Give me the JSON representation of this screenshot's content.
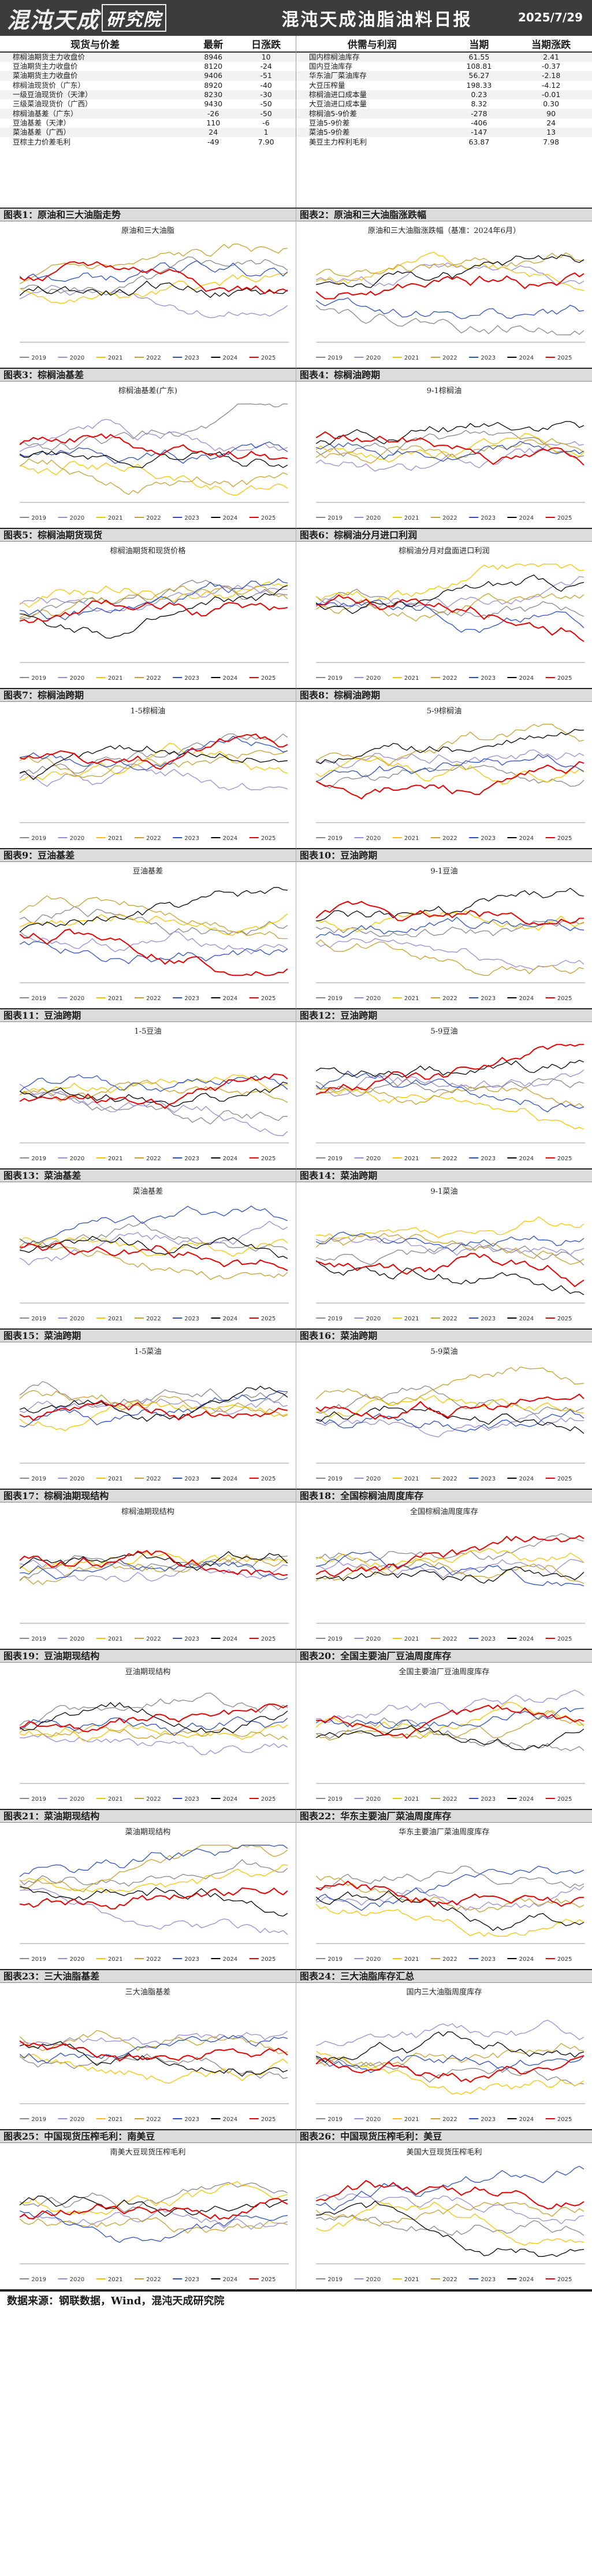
{
  "header": {
    "brand_a": "混沌天成",
    "brand_b": "研究院",
    "title": "混沌天成油脂油料日报",
    "date": "2025/7/29"
  },
  "spot_table": {
    "headers": [
      "现货与价差",
      "最新",
      "日涨跌"
    ],
    "rows": [
      [
        "棕榈油期货主力收盘价",
        "8946",
        "10"
      ],
      [
        "豆油期货主力收盘价",
        "8120",
        "-24"
      ],
      [
        "菜油期货主力收盘价",
        "9406",
        "-51"
      ],
      [
        "棕榈油现货价（广东）",
        "8920",
        "-40"
      ],
      [
        "一级豆油现货价（天津）",
        "8230",
        "-30"
      ],
      [
        "三级菜油现货价（广西）",
        "9430",
        "-50"
      ],
      [
        "棕榈油基差（广东）",
        "-26",
        "-50"
      ],
      [
        "豆油基差（天津）",
        "110",
        "-6"
      ],
      [
        "菜油基差（广西）",
        "24",
        "1"
      ],
      [
        "豆棕主力价差毛利",
        "-49",
        "7.90"
      ]
    ]
  },
  "supply_table": {
    "headers": [
      "供需与利润",
      "当期",
      "当期涨跌"
    ],
    "rows": [
      [
        "国内棕榈油库存",
        "61.55",
        "2.41"
      ],
      [
        "国内豆油库存",
        "108.81",
        "-0.37"
      ],
      [
        "华东油厂菜油库存",
        "56.27",
        "-2.18"
      ],
      [
        "大豆压榨量",
        "198.33",
        "-4.12"
      ],
      [
        "棕榈油进口成本量",
        "0.23",
        "-0.01"
      ],
      [
        "大豆油进口成本量",
        "8.32",
        "0.30"
      ],
      [
        "棕榈油5-9价差",
        "-278",
        "90"
      ],
      [
        "豆油5-9价差",
        "-406",
        "24"
      ],
      [
        "菜油5-9价差",
        "-147",
        "13"
      ],
      [
        "美豆主力榨利毛利",
        "63.87",
        "7.98"
      ]
    ]
  },
  "panels": [
    {
      "title": "图表1：原油和三大油脂走势",
      "chart_title": "原油和三大油脂"
    },
    {
      "title": "图表2：原油和三大油脂涨跌幅",
      "chart_title": "原油和三大油脂涨跌幅（基准：2024年6月）"
    },
    {
      "title": "图表3：棕榈油基差",
      "chart_title": "棕榈油基差(广东)"
    },
    {
      "title": "图表4：棕榈油跨期",
      "chart_title": "9-1棕榈油"
    },
    {
      "title": "图表5：棕榈油期货现货",
      "chart_title": "棕榈油期货和现货价格"
    },
    {
      "title": "图表6：棕榈油分月进口利润",
      "chart_title": "棕榈油分月对盘面进口利润"
    },
    {
      "title": "图表7：棕榈油跨期",
      "chart_title": "1-5棕榈油"
    },
    {
      "title": "图表8：棕榈油跨期",
      "chart_title": "5-9棕榈油"
    },
    {
      "title": "图表9：豆油基差",
      "chart_title": "豆油基差"
    },
    {
      "title": "图表10：豆油跨期",
      "chart_title": "9-1豆油"
    },
    {
      "title": "图表11：豆油跨期",
      "chart_title": "1-5豆油"
    },
    {
      "title": "图表12：豆油跨期",
      "chart_title": "5-9豆油"
    },
    {
      "title": "图表13：菜油基差",
      "chart_title": "菜油基差"
    },
    {
      "title": "图表14：菜油跨期",
      "chart_title": "9-1菜油"
    },
    {
      "title": "图表15：菜油跨期",
      "chart_title": "1-5菜油"
    },
    {
      "title": "图表16：菜油跨期",
      "chart_title": "5-9菜油"
    },
    {
      "title": "图表17：棕榈油期现结构",
      "chart_title": "棕榈油期现结构"
    },
    {
      "title": "图表18：全国棕榈油周度库存",
      "chart_title": "全国棕榈油周度库存"
    },
    {
      "title": "图表19：豆油期现结构",
      "chart_title": "豆油期现结构"
    },
    {
      "title": "图表20：全国主要油厂豆油周度库存",
      "chart_title": "全国主要油厂豆油周度库存"
    },
    {
      "title": "图表21：菜油期现结构",
      "chart_title": "菜油期现结构"
    },
    {
      "title": "图表22：华东主要油厂菜油周度库存",
      "chart_title": "华东主要油厂菜油周度库存"
    },
    {
      "title": "图表23：三大油脂基差",
      "chart_title": "三大油脂基差"
    },
    {
      "title": "图表24：三大油脂库存汇总",
      "chart_title": "国内三大油脂周度库存"
    },
    {
      "title": "图表25：中国现货压榨毛利：南美豆",
      "chart_title": "南美大豆现货压榨毛利"
    },
    {
      "title": "图表26：中国现货压榨毛利：美豆",
      "chart_title": "美国大豆现货压榨毛利"
    }
  ],
  "legend_years": [
    "2019",
    "2020",
    "2021",
    "2022",
    "2023",
    "2024",
    "2025"
  ],
  "colors": {
    "2019": "#888888",
    "2020": "#9b8bd6",
    "2021": "#f5c400",
    "2022": "#c8a030",
    "2023": "#2a4fbf",
    "2024": "#000000",
    "2025": "#e60000"
  },
  "footer": "数据来源：钢联数据，Wind，混沌天成研究院"
}
